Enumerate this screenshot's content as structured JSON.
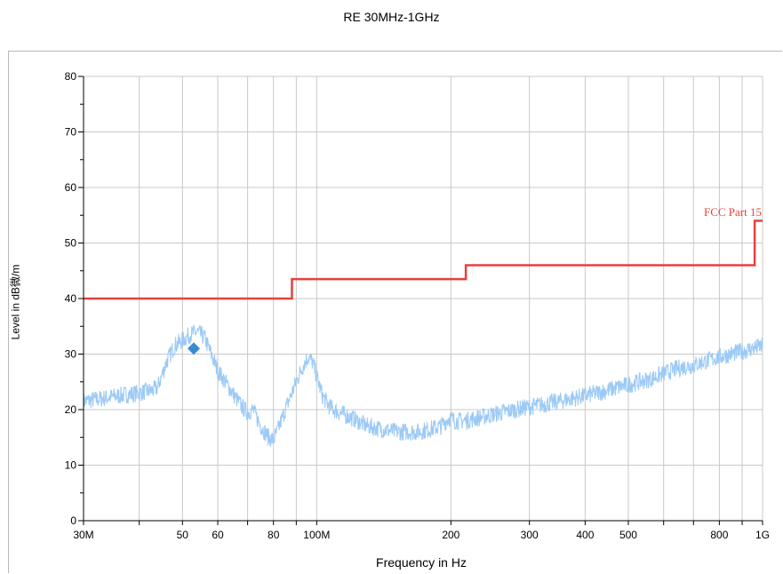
{
  "chart_data": {
    "type": "line",
    "title": "RE 30MHz-1GHz",
    "xlabel": "Frequency in Hz",
    "ylabel": "Level in dB微/m",
    "x_scale": "log",
    "xlim": [
      30000000,
      1000000000
    ],
    "ylim": [
      0,
      80
    ],
    "x_ticks": [
      {
        "value": 30000000,
        "label": "30M"
      },
      {
        "value": 50000000,
        "label": "50"
      },
      {
        "value": 60000000,
        "label": "60"
      },
      {
        "value": 80000000,
        "label": "80"
      },
      {
        "value": 100000000,
        "label": "100M"
      },
      {
        "value": 200000000,
        "label": "200"
      },
      {
        "value": 300000000,
        "label": "300"
      },
      {
        "value": 400000000,
        "label": "400"
      },
      {
        "value": 500000000,
        "label": "500"
      },
      {
        "value": 800000000,
        "label": "800"
      },
      {
        "value": 1000000000,
        "label": "1G"
      }
    ],
    "y_ticks": [
      0,
      10,
      20,
      30,
      40,
      50,
      60,
      70,
      80
    ],
    "grid": true,
    "series": [
      {
        "name": "",
        "kind": "measurement",
        "color": "#9ccaf5",
        "x": [
          30000000,
          33000000,
          36000000,
          40000000,
          43000000,
          44000000,
          46000000,
          48000000,
          50000000,
          52000000,
          54000000,
          56000000,
          58000000,
          60000000,
          63000000,
          66000000,
          68000000,
          70000000,
          72000000,
          75000000,
          78000000,
          80000000,
          82000000,
          85000000,
          88000000,
          91000000,
          94000000,
          96000000,
          98000000,
          100000000,
          103000000,
          107000000,
          112000000,
          120000000,
          130000000,
          140000000,
          150000000,
          160000000,
          170000000,
          180000000,
          190000000,
          198000000,
          205000000,
          215000000,
          230000000,
          260000000,
          300000000,
          350000000,
          400000000,
          450000000,
          500000000,
          560000000,
          600000000,
          650000000,
          700000000,
          800000000,
          900000000,
          1000000000
        ],
        "y": [
          21.5,
          22,
          22.5,
          23,
          23.5,
          24,
          28.5,
          31.5,
          32.5,
          33.5,
          34,
          33,
          30,
          27,
          24.5,
          22,
          20.5,
          19.5,
          20,
          17,
          15,
          14.5,
          16.5,
          20,
          23,
          26,
          28.5,
          29.5,
          28.5,
          26,
          22.5,
          20.5,
          19.5,
          18.5,
          17,
          16.5,
          16,
          16,
          16,
          16.5,
          17,
          18.5,
          18,
          18,
          18.5,
          19.5,
          20.5,
          21.5,
          22.5,
          23.5,
          24.5,
          25.5,
          26.5,
          27.5,
          28,
          29.5,
          30.5,
          31.5
        ]
      },
      {
        "name": "FCC Part 15",
        "kind": "limit",
        "color": "#e8403e",
        "x": [
          30000000,
          88000000,
          88000000,
          216000000,
          216000000,
          960000000,
          960000000,
          1000000000
        ],
        "y": [
          40,
          40,
          43.5,
          43.5,
          46,
          46,
          54,
          54
        ]
      }
    ],
    "markers": [
      {
        "x": 53000000,
        "y": 31,
        "color": "#3a8ad1",
        "shape": "diamond"
      }
    ],
    "limit_label": {
      "text": "FCC Part 15",
      "color": "#e8403e"
    }
  }
}
